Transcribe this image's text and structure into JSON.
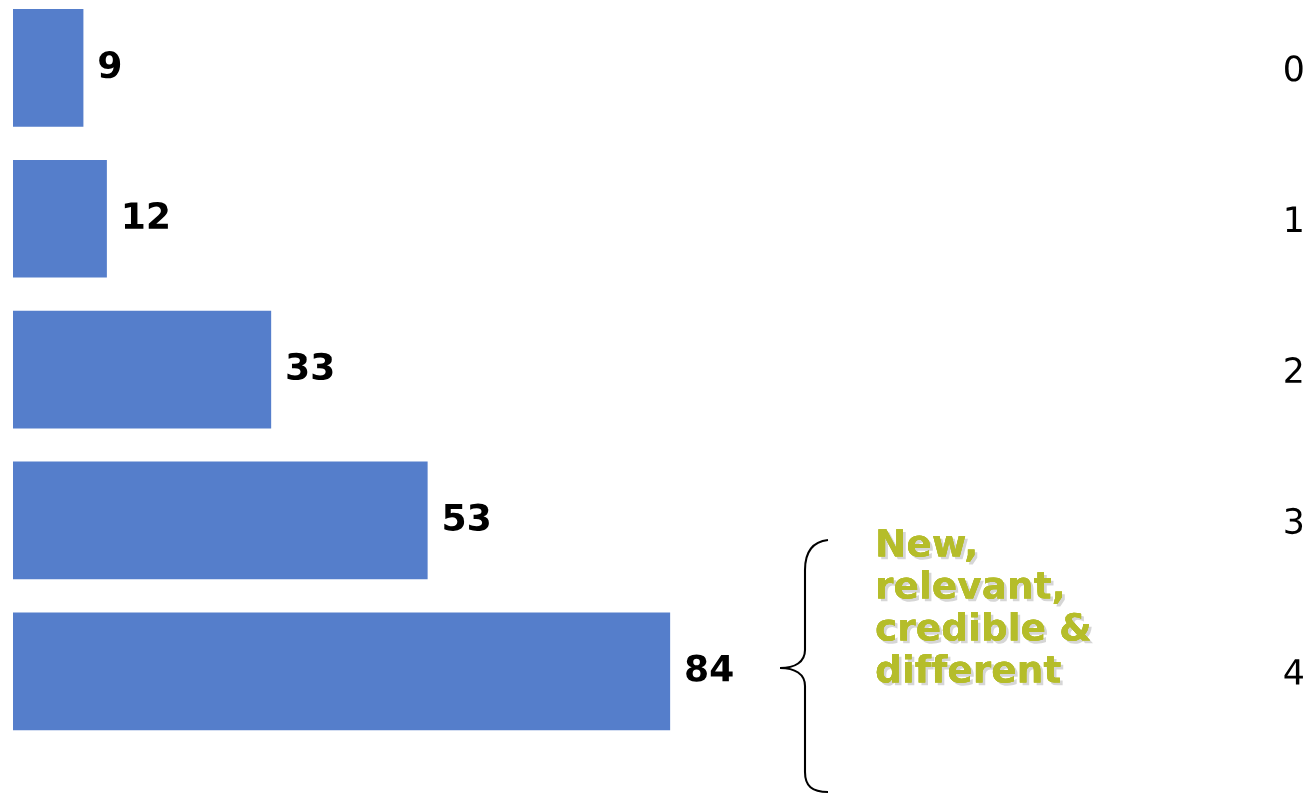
{
  "chart_data": {
    "type": "bar",
    "orientation": "horizontal",
    "categories": [
      "0",
      "1",
      "2",
      "3",
      "4"
    ],
    "values": [
      9,
      12,
      33,
      53,
      84
    ],
    "color": "#557ecb",
    "data_labels": true,
    "grid": false,
    "legend": false,
    "annotations": [
      "New, relevant, credible & different"
    ]
  }
}
